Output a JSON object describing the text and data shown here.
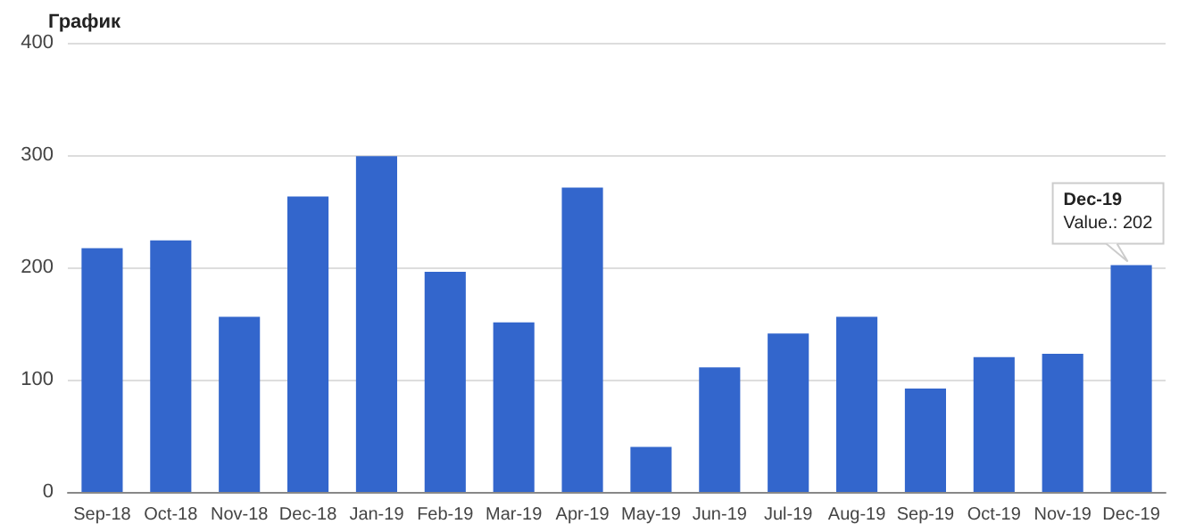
{
  "chart_data": {
    "type": "bar",
    "title": "График",
    "categories": [
      "Sep-18",
      "Oct-18",
      "Nov-18",
      "Dec-18",
      "Jan-19",
      "Feb-19",
      "Mar-19",
      "Apr-19",
      "May-19",
      "Jun-19",
      "Jul-19",
      "Aug-19",
      "Sep-19",
      "Oct-19",
      "Nov-19",
      "Dec-19"
    ],
    "values": [
      217,
      224,
      156,
      263,
      299,
      196,
      151,
      271,
      40,
      111,
      141,
      156,
      92,
      120,
      123,
      202
    ],
    "color": "#3366cc",
    "ylim": [
      0,
      400
    ],
    "yticks": [
      0,
      100,
      200,
      300,
      400
    ],
    "grid": "y",
    "annotations": [
      {
        "text": "Dec-19\nValue.: 202",
        "x": "Dec-19",
        "y": 202
      }
    ]
  }
}
